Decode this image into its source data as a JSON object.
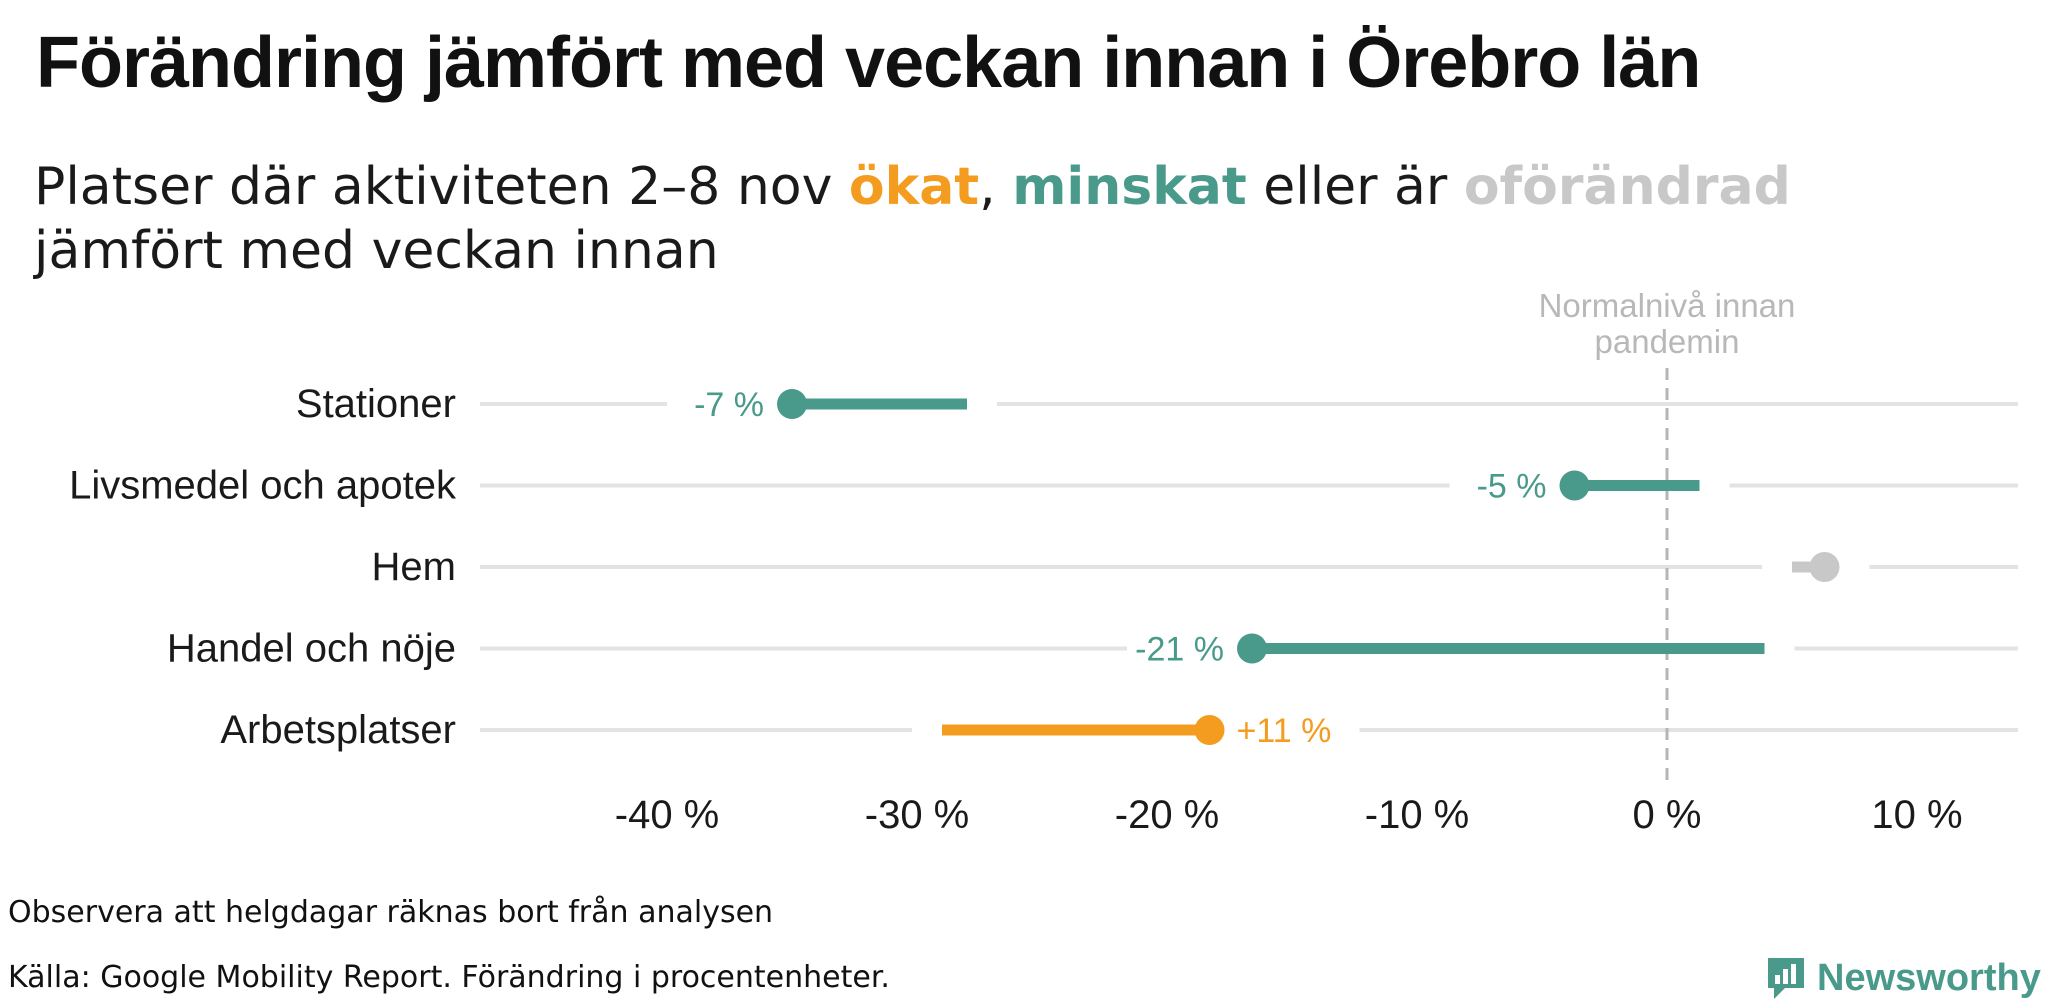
{
  "title": "Förändring jämfört med veckan innan i Örebro län",
  "subtitle": {
    "prefix": "Platser där aktiviteten 2–8 nov ",
    "increased": "ökat",
    "sep": ", ",
    "decreased": "minskat",
    "middle": " eller är ",
    "unchanged": "oförändrad",
    "line2": "jämfört med veckan innan"
  },
  "colors": {
    "increased": "#f39c1f",
    "decreased": "#4a9a8c",
    "unchanged": "#c8c8c8",
    "grid": "#e3e3e6",
    "refline": "#b5b5b5"
  },
  "reference_label": [
    "Normalnivå innan",
    "pandemin"
  ],
  "chart_data": {
    "type": "dumbbell",
    "title": "Förändring jämfört med veckan innan i Örebro län",
    "xlabel": "",
    "ylabel": "",
    "xlim": [
      -47,
      14
    ],
    "x_ticks": [
      -40,
      -30,
      -20,
      -10,
      0,
      10
    ],
    "x_tick_labels": [
      "-40 %",
      "-30 %",
      "-20 %",
      "-10 %",
      "0 %",
      "10 %"
    ],
    "reference_line": 0,
    "categories": [
      "Stationer",
      "Livsmedel och apotek",
      "Hem",
      "Handel och nöje",
      "Arbetsplatser"
    ],
    "series": [
      {
        "name": "Veckan innan",
        "values": [
          -28,
          1.3,
          5,
          3.9,
          -29
        ]
      },
      {
        "name": "2–8 nov",
        "values": [
          -35,
          -3.7,
          6.3,
          -16.6,
          -18.3
        ]
      }
    ],
    "change_labels": [
      "-7 %",
      "-5 %",
      "",
      "-21 %",
      "+11 %"
    ],
    "status": [
      "decreased",
      "decreased",
      "unchanged",
      "decreased",
      "increased"
    ]
  },
  "notes": {
    "note": "Observera att helgdagar räknas bort från analysen",
    "source": "Källa: Google Mobility Report. Förändring i procentenheter."
  },
  "logo": {
    "text": "Newsworthy",
    "icon": "newsworthy-chart-icon"
  }
}
